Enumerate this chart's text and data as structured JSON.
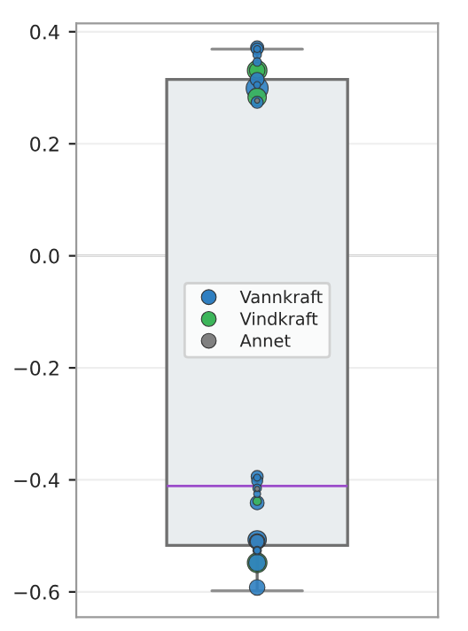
{
  "chart_data": {
    "type": "box",
    "categories": [
      null
    ],
    "boxes": [
      {
        "low": -0.598,
        "q1": -0.517,
        "median": -0.411,
        "q3": 0.315,
        "high": 0.369
      }
    ],
    "ylim": [
      -0.645,
      0.415
    ],
    "yticks": [
      {
        "value": -0.6,
        "label": "−0.6"
      },
      {
        "value": -0.4,
        "label": "−0.4"
      },
      {
        "value": -0.2,
        "label": "−0.2"
      },
      {
        "value": 0.0,
        "label": "0.0"
      },
      {
        "value": 0.2,
        "label": "0.2"
      },
      {
        "value": 0.4,
        "label": "0.4"
      }
    ],
    "tick_labels": "y",
    "grid": "y",
    "ref_lines": [
      {
        "axis": "y",
        "value": 0.0,
        "color": "#a0a0a0"
      }
    ],
    "legend": "center",
    "marker": "circle",
    "series": [
      {
        "name": "Vannkraft",
        "type": "bubble",
        "color": "#2f7fc1",
        "x": [
          null,
          null,
          null,
          null,
          null,
          null,
          null,
          null,
          null,
          null,
          null,
          null,
          null,
          null,
          null,
          null,
          null,
          null,
          null,
          null,
          null
        ],
        "values": [
          0.369,
          0.369,
          0.372,
          0.359,
          0.346,
          0.315,
          0.305,
          0.299,
          0.274,
          -0.394,
          -0.415,
          -0.402,
          -0.396,
          -0.425,
          -0.441,
          -0.507,
          -0.51,
          -0.526,
          -0.526,
          -0.548,
          -0.592
        ],
        "sizes": [
          0.3,
          0.1,
          0.35,
          0.15,
          0.15,
          0.4,
          0.1,
          1.0,
          0.3,
          0.3,
          0.15,
          0.25,
          0.1,
          0.1,
          0.4,
          0.7,
          0.4,
          0.1,
          0.15,
          0.6,
          0.5
        ]
      },
      {
        "name": "Vindkraft",
        "type": "bubble",
        "color": "#3cb55a",
        "x": [
          null,
          null,
          null,
          null,
          null
        ],
        "values": [
          0.331,
          0.331,
          0.283,
          -0.438,
          -0.548
        ],
        "sizes": [
          0.8,
          0.5,
          0.7,
          0.15,
          0.8
        ]
      },
      {
        "name": "Annet",
        "type": "bubble",
        "color": "#808080",
        "x": [
          null,
          null,
          null
        ],
        "values": [
          0.277,
          -0.416,
          -0.51
        ],
        "sizes": [
          0.05,
          0.05,
          0.5
        ]
      }
    ]
  }
}
